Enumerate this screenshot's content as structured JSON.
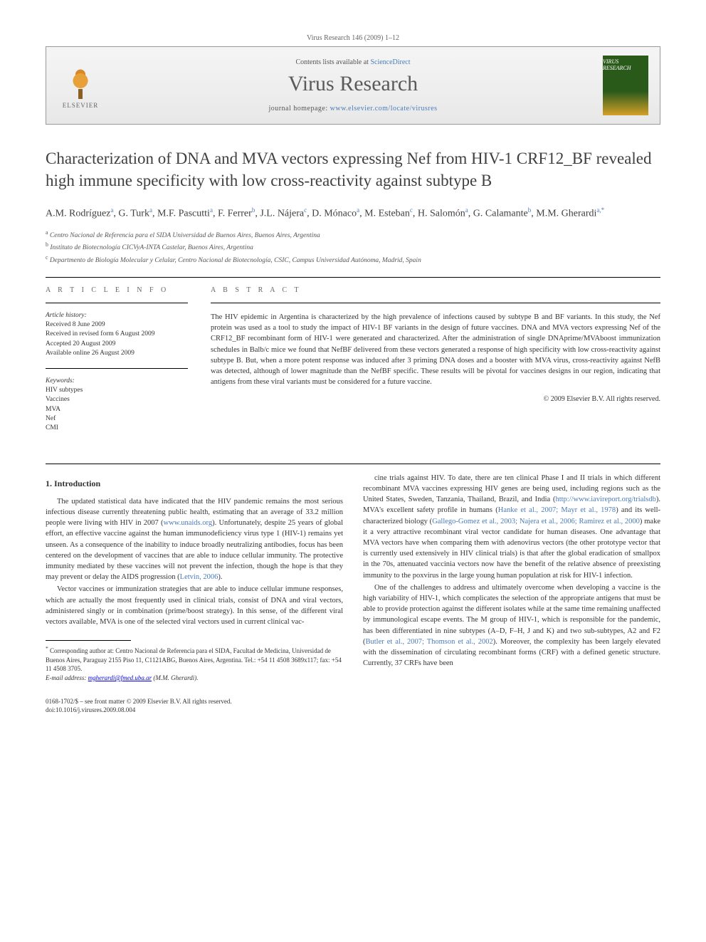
{
  "citation": "Virus Research 146 (2009) 1–12",
  "banner": {
    "contents_prefix": "Contents lists available at ",
    "contents_link": "ScienceDirect",
    "journal_name": "Virus Research",
    "homepage_prefix": "journal homepage: ",
    "homepage_url": "www.elsevier.com/locate/virusres",
    "elsevier_label": "ELSEVIER",
    "cover_label": "VIRUS RESEARCH"
  },
  "title": "Characterization of DNA and MVA vectors expressing Nef from HIV-1 CRF12_BF revealed high immune specificity with low cross-reactivity against subtype B",
  "authors_html": "A.M. Rodríguez<sup>a</sup>, G. Turk<sup>a</sup>, M.F. Pascutti<sup>a</sup>, F. Ferrer<sup>b</sup>, J.L. Nájera<sup>c</sup>, D. Mónaco<sup>a</sup>, M. Esteban<sup>c</sup>, H. Salomón<sup>a</sup>, G. Calamante<sup>b</sup>, M.M. Gherardi<sup>a,*</sup>",
  "affiliations": [
    "a Centro Nacional de Referencia para el SIDA Universidad de Buenos Aires, Buenos Aires, Argentina",
    "b Instituto de Biotecnología CICVyA-INTA Castelar, Buenos Aires, Argentina",
    "c Departmento de Biología Molecular y Celular, Centro Nacional de Biotecnología, CSIC, Campus Universidad Autónoma, Madrid, Spain"
  ],
  "info": {
    "heading": "A R T I C L E   I N F O",
    "history_label": "Article history:",
    "history": [
      "Received 8 June 2009",
      "Received in revised form 6 August 2009",
      "Accepted 20 August 2009",
      "Available online 26 August 2009"
    ],
    "keywords_label": "Keywords:",
    "keywords": [
      "HIV subtypes",
      "Vaccines",
      "MVA",
      "Nef",
      "CMI"
    ]
  },
  "abstract": {
    "heading": "A B S T R A C T",
    "text": "The HIV epidemic in Argentina is characterized by the high prevalence of infections caused by subtype B and BF variants. In this study, the Nef protein was used as a tool to study the impact of HIV-1 BF variants in the design of future vaccines. DNA and MVA vectors expressing Nef of the CRF12_BF recombinant form of HIV-1 were generated and characterized. After the administration of single DNAprime/MVAboost immunization schedules in Balb/c mice we found that NefBF delivered from these vectors generated a response of high specificity with low cross-reactivity against subtype B. But, when a more potent response was induced after 3 priming DNA doses and a booster with MVA virus, cross-reactivity against NefB was detected, although of lower magnitude than the NefBF specific. These results will be pivotal for vaccines designs in our region, indicating that antigens from these viral variants must be considered for a future vaccine.",
    "copyright": "© 2009 Elsevier B.V. All rights reserved."
  },
  "section1_heading": "1. Introduction",
  "body": {
    "col1": [
      "The updated statistical data have indicated that the HIV pandemic remains the most serious infectious disease currently threatening public health, estimating that an average of 33.2 million people were living with HIV in 2007 (<a href='#'>www.unaids.org</a>). Unfortunately, despite 25 years of global effort, an effective vaccine against the human immunodeficiency virus type 1 (HIV-1) remains yet unseen. As a consequence of the inability to induce broadly neutralizing antibodies, focus has been centered on the development of vaccines that are able to induce cellular immunity. The protective immunity mediated by these vaccines will not prevent the infection, though the hope is that they may prevent or delay the AIDS progression (<a href='#'>Letvin, 2006</a>).",
      "Vector vaccines or immunization strategies that are able to induce cellular immune responses, which are actually the most frequently used in clinical trials, consist of DNA and viral vectors, administered singly or in combination (prime/boost strategy). In this sense, of the different viral vectors available, MVA is one of the selected viral vectors used in current clinical vac-"
    ],
    "col2": [
      "cine trials against HIV. To date, there are ten clinical Phase I and II trials in which different recombinant MVA vaccines expressing HIV genes are being used, including regions such as the United States, Sweden, Tanzania, Thailand, Brazil, and India (<a href='#'>http://www.iavireport.org/trialsdb</a>). MVA's excellent safety profile in humans (<a href='#'>Hanke et al., 2007; Mayr et al., 1978</a>) and its well-characterized biology (<a href='#'>Gallego-Gomez et al., 2003; Najera et al., 2006; Ramirez et al., 2000</a>) make it a very attractive recombinant viral vector candidate for human diseases. One advantage that MVA vectors have when comparing them with adenovirus vectors (the other prototype vector that is currently used extensively in HIV clinical trials) is that after the global eradication of smallpox in the 70s, attenuated vaccinia vectors now have the benefit of the relative absence of preexisting immunity to the poxvirus in the large young human population at risk for HIV-1 infection.",
      "One of the challenges to address and ultimately overcome when developing a vaccine is the high variability of HIV-1, which complicates the selection of the appropriate antigens that must be able to provide protection against the different isolates while at the same time remaining unaffected by immunological escape events. The M group of HIV-1, which is responsible for the pandemic, has been differentiated in nine subtypes (A–D, F–H, J and K) and two sub-subtypes, A2 and F2 (<a href='#'>Butler et al., 2007; Thomson et al., 2002</a>). Moreover, the complexity has been largely elevated with the dissemination of circulating recombinant forms (CRF) with a defined genetic structure. Currently, 37 CRFs have been"
    ]
  },
  "corresponding": {
    "marker": "*",
    "text": "Corresponding author at: Centro Nacional de Referencia para el SIDA, Facultad de Medicina, Universidad de Buenos Aires, Paraguay 2155 Piso 11, C1121ABG, Buenos Aires, Argentina. Tel.: +54 11 4508 3689x117; fax: +54 11 4508 3705.",
    "email_label": "E-mail address:",
    "email": "mgherardi@fmed.uba.ar",
    "email_name": "(M.M. Gherardi)."
  },
  "footer": {
    "line1": "0168-1702/$ – see front matter © 2009 Elsevier B.V. All rights reserved.",
    "line2": "doi:10.1016/j.virusres.2009.08.004"
  },
  "colors": {
    "link": "#4a7bb8",
    "text": "#333333",
    "heading_gray": "#666666",
    "title_gray": "#404040"
  }
}
